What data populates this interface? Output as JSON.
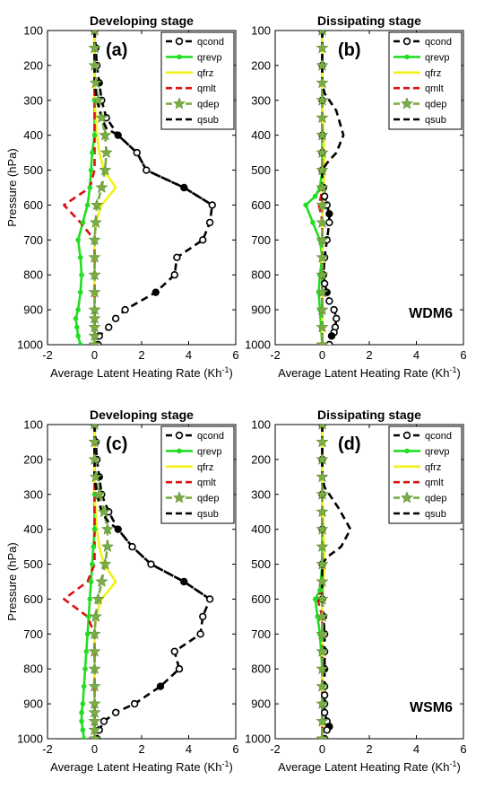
{
  "chart_data": [
    {
      "type": "line",
      "title": "Developing stage",
      "panel_label": "(a)",
      "scheme": "",
      "xlabel": "Average Latent Heating Rate (Kh",
      "xlabel_sup": "-1",
      "xlabel_close": ")",
      "ylabel": "Pressure (hPa)",
      "xlim": [
        -2,
        6
      ],
      "ylim": [
        1000,
        100
      ],
      "xticks": [
        "-2",
        "0",
        "2",
        "4",
        "6"
      ],
      "yticks": [
        "100",
        "200",
        "300",
        "400",
        "500",
        "600",
        "700",
        "800",
        "900",
        "1000"
      ],
      "legend_position": "top-right",
      "series": [
        {
          "name": "qcond",
          "x": [
            0,
            0.05,
            0.1,
            0.2,
            0.3,
            0.5,
            1.0,
            1.8,
            2.2,
            3.8,
            5.0,
            4.9,
            4.6,
            3.5,
            3.4,
            2.6,
            1.3,
            0.9,
            0.6,
            0.2,
            0.15
          ],
          "y": [
            100,
            150,
            200,
            250,
            300,
            350,
            400,
            450,
            500,
            550,
            600,
            650,
            700,
            750,
            800,
            850,
            900,
            925,
            950,
            975,
            1000
          ]
        },
        {
          "name": "qrevp",
          "x": [
            0,
            0,
            0,
            0,
            -0.1,
            -0.15,
            -0.2,
            -0.3,
            -0.5,
            -0.7,
            -0.6,
            -0.55,
            -0.6,
            -0.7,
            -0.8,
            -0.75,
            -0.7,
            -0.6
          ],
          "y": [
            100,
            200,
            300,
            400,
            450,
            500,
            550,
            600,
            650,
            700,
            750,
            800,
            850,
            900,
            925,
            950,
            975,
            1000
          ]
        },
        {
          "name": "qfrz",
          "x": [
            0,
            0,
            0.1,
            0.2,
            0.4,
            0.9,
            0.3,
            0.05,
            0,
            0
          ],
          "y": [
            100,
            300,
            400,
            450,
            500,
            550,
            600,
            650,
            700,
            1000
          ]
        },
        {
          "name": "qmlt",
          "x": [
            0,
            0,
            -0.2,
            -1.3,
            -0.6,
            0,
            0
          ],
          "y": [
            100,
            500,
            550,
            600,
            650,
            700,
            1000
          ]
        },
        {
          "name": "qdep",
          "x": [
            0,
            0,
            0,
            0.05,
            0.15,
            0.3,
            0.45,
            0.5,
            0.45,
            0.3,
            0.1,
            0.05,
            0,
            0,
            0,
            0,
            0,
            0,
            0,
            0,
            0
          ],
          "y": [
            100,
            150,
            200,
            250,
            300,
            350,
            400,
            450,
            500,
            550,
            600,
            650,
            700,
            750,
            800,
            850,
            900,
            925,
            950,
            975,
            1000
          ]
        },
        {
          "name": "qsub",
          "x": [
            0,
            0,
            0,
            0.1,
            0.3,
            0.5,
            1.0,
            1.8,
            2.2,
            3.8,
            5.0
          ],
          "y": [
            100,
            200,
            250,
            300,
            350,
            380,
            400,
            450,
            500,
            550,
            600
          ]
        }
      ]
    },
    {
      "type": "line",
      "title": "Dissipating stage",
      "panel_label": "(b)",
      "scheme": "WDM6",
      "xlabel": "Average Latent Heating Rate (Kh",
      "xlabel_sup": "-1",
      "xlabel_close": ")",
      "ylabel": "",
      "xlim": [
        -2,
        6
      ],
      "ylim": [
        1000,
        100
      ],
      "xticks": [
        "-2",
        "0",
        "2",
        "4",
        "6"
      ],
      "yticks": [
        "100",
        "200",
        "300",
        "400",
        "500",
        "600",
        "700",
        "800",
        "900",
        "1000"
      ],
      "legend_position": "top-right",
      "series": [
        {
          "name": "qcond",
          "x": [
            0,
            0,
            0,
            0,
            0,
            0,
            0.05,
            0.1,
            0.2,
            0.3,
            0.3,
            0.2,
            0.1,
            0.05,
            0.1,
            0.2,
            0.3,
            0.5,
            0.6,
            0.55,
            0.5,
            0.4,
            0.3
          ],
          "y": [
            100,
            200,
            300,
            400,
            450,
            500,
            550,
            575,
            600,
            625,
            650,
            700,
            750,
            800,
            825,
            850,
            875,
            900,
            925,
            950,
            965,
            975,
            1000
          ]
        },
        {
          "name": "qrevp",
          "x": [
            0,
            0,
            0,
            0,
            -0.1,
            -0.3,
            -0.7,
            -0.4,
            -0.1,
            0,
            -0.1,
            -0.15,
            -0.1,
            -0.05,
            0
          ],
          "y": [
            100,
            300,
            400,
            500,
            550,
            575,
            600,
            650,
            700,
            750,
            800,
            850,
            900,
            950,
            1000
          ]
        },
        {
          "name": "qfrz",
          "x": [
            0,
            0,
            0.05,
            0.1,
            0.05,
            0,
            0
          ],
          "y": [
            100,
            300,
            400,
            500,
            550,
            600,
            1000
          ]
        },
        {
          "name": "qmlt",
          "x": [
            0,
            0,
            -0.05,
            -0.15,
            -0.05,
            0,
            0
          ],
          "y": [
            100,
            550,
            575,
            600,
            625,
            650,
            1000
          ]
        },
        {
          "name": "qdep",
          "x": [
            0,
            0,
            0,
            0,
            0,
            0,
            0,
            0,
            0,
            0,
            0,
            0,
            0,
            0,
            0,
            0,
            0,
            0,
            0
          ],
          "y": [
            100,
            150,
            200,
            250,
            300,
            350,
            400,
            450,
            500,
            550,
            600,
            650,
            700,
            750,
            800,
            850,
            900,
            950,
            1000
          ]
        },
        {
          "name": "qsub",
          "x": [
            0,
            0,
            0.1,
            0.3,
            0.6,
            0.9,
            0.6,
            0.2,
            0,
            0
          ],
          "y": [
            100,
            250,
            280,
            300,
            330,
            400,
            450,
            480,
            500,
            600
          ]
        }
      ]
    },
    {
      "type": "line",
      "title": "Developing stage",
      "panel_label": "(c)",
      "scheme": "",
      "xlabel": "Average Latent Heating Rate (Kh",
      "xlabel_sup": "-1",
      "xlabel_close": ")",
      "ylabel": "Pressure (hPa)",
      "xlim": [
        -2,
        6
      ],
      "ylim": [
        1000,
        100
      ],
      "xticks": [
        "-2",
        "0",
        "2",
        "4",
        "6"
      ],
      "yticks": [
        "100",
        "200",
        "300",
        "400",
        "500",
        "600",
        "700",
        "800",
        "900",
        "1000"
      ],
      "legend_position": "top-right",
      "series": [
        {
          "name": "qcond",
          "x": [
            0,
            0.05,
            0.1,
            0.2,
            0.3,
            0.6,
            1.0,
            1.6,
            2.4,
            3.8,
            4.9,
            4.6,
            4.5,
            3.4,
            3.6,
            2.8,
            1.7,
            0.9,
            0.4,
            0.2,
            0.1
          ],
          "y": [
            100,
            150,
            200,
            250,
            300,
            350,
            400,
            450,
            500,
            550,
            600,
            650,
            700,
            750,
            800,
            850,
            900,
            925,
            950,
            975,
            1000
          ]
        },
        {
          "name": "qrevp",
          "x": [
            0,
            0,
            0,
            0,
            -0.05,
            -0.1,
            -0.15,
            -0.2,
            -0.25,
            -0.3,
            -0.35,
            -0.4,
            -0.45,
            -0.5,
            -0.55,
            -0.55,
            -0.5,
            -0.45
          ],
          "y": [
            100,
            200,
            300,
            400,
            450,
            500,
            550,
            600,
            650,
            700,
            750,
            800,
            850,
            900,
            925,
            950,
            975,
            1000
          ]
        },
        {
          "name": "qfrz",
          "x": [
            0,
            0,
            0.1,
            0.2,
            0.4,
            0.9,
            0.3,
            0.05,
            0,
            0
          ],
          "y": [
            100,
            300,
            400,
            450,
            500,
            550,
            600,
            650,
            700,
            1000
          ]
        },
        {
          "name": "qmlt",
          "x": [
            0,
            0,
            -0.3,
            -1.3,
            -0.3,
            0,
            0
          ],
          "y": [
            100,
            500,
            550,
            600,
            650,
            700,
            1000
          ]
        },
        {
          "name": "qdep",
          "x": [
            0,
            0,
            0,
            0.05,
            0.2,
            0.4,
            0.55,
            0.55,
            0.45,
            0.3,
            0.15,
            0.05,
            0,
            0,
            0,
            0,
            0,
            0,
            0,
            0,
            0
          ],
          "y": [
            100,
            150,
            200,
            250,
            300,
            350,
            400,
            450,
            500,
            550,
            600,
            650,
            700,
            750,
            800,
            850,
            900,
            925,
            950,
            975,
            1000
          ]
        },
        {
          "name": "qsub",
          "x": [
            0,
            0,
            0,
            0.1,
            0.3,
            0.6,
            1.0,
            1.6,
            2.4,
            3.8,
            4.9
          ],
          "y": [
            100,
            200,
            250,
            300,
            350,
            380,
            400,
            450,
            500,
            550,
            600
          ]
        }
      ]
    },
    {
      "type": "line",
      "title": "Dissipating stage",
      "panel_label": "(d)",
      "scheme": "WSM6",
      "xlabel": "Average Latent Heating Rate (Kh",
      "xlabel_sup": "-1",
      "xlabel_close": ")",
      "ylabel": "",
      "xlim": [
        -2,
        6
      ],
      "ylim": [
        1000,
        100
      ],
      "xticks": [
        "-2",
        "0",
        "2",
        "4",
        "6"
      ],
      "yticks": [
        "100",
        "200",
        "300",
        "400",
        "500",
        "600",
        "700",
        "800",
        "900",
        "1000"
      ],
      "legend_position": "top-right",
      "series": [
        {
          "name": "qcond",
          "x": [
            0,
            0,
            0,
            0,
            0,
            0,
            0.05,
            0.1,
            0.1,
            0.1,
            0.1,
            0.1,
            0.1,
            0.1,
            0.2,
            0.3,
            0.2,
            0.1
          ],
          "y": [
            100,
            200,
            300,
            400,
            500,
            600,
            650,
            700,
            750,
            800,
            850,
            875,
            900,
            925,
            950,
            965,
            975,
            1000
          ]
        },
        {
          "name": "qrevp",
          "x": [
            0,
            0,
            0,
            0,
            -0.1,
            -0.3,
            -0.2,
            -0.1,
            -0.05,
            0,
            0,
            0
          ],
          "y": [
            100,
            300,
            400,
            500,
            575,
            600,
            650,
            700,
            750,
            800,
            900,
            1000
          ]
        },
        {
          "name": "qfrz",
          "x": [
            0,
            0,
            0.05,
            0.1,
            0.05,
            0,
            0
          ],
          "y": [
            100,
            300,
            400,
            500,
            550,
            600,
            1000
          ]
        },
        {
          "name": "qmlt",
          "x": [
            0,
            0,
            -0.05,
            -0.2,
            -0.1,
            0,
            0
          ],
          "y": [
            100,
            550,
            575,
            600,
            625,
            650,
            1000
          ]
        },
        {
          "name": "qdep",
          "x": [
            0,
            0,
            0,
            0,
            0,
            0,
            0,
            0,
            0,
            0,
            0,
            0,
            0,
            0,
            0,
            0,
            0,
            0,
            0
          ],
          "y": [
            100,
            150,
            200,
            250,
            300,
            350,
            400,
            450,
            500,
            550,
            600,
            650,
            700,
            750,
            800,
            850,
            900,
            950,
            1000
          ]
        },
        {
          "name": "qsub",
          "x": [
            0,
            0,
            0.1,
            0.3,
            0.7,
            1.2,
            0.8,
            0.2,
            0,
            0
          ],
          "y": [
            100,
            250,
            280,
            300,
            340,
            400,
            450,
            480,
            500,
            600
          ]
        }
      ]
    }
  ],
  "series_styles": {
    "qcond": {
      "color": "#000000",
      "dash": "8,5",
      "marker": "circle-open"
    },
    "qrevp": {
      "color": "#22dd22",
      "dash": "",
      "marker": "dot"
    },
    "qfrz": {
      "color": "#f2f21a",
      "dash": "",
      "marker": "none"
    },
    "qmlt": {
      "color": "#dd1111",
      "dash": "8,5",
      "marker": "none"
    },
    "qdep": {
      "color": "#7aae44",
      "dash": "8,5",
      "marker": "star"
    },
    "qsub": {
      "color": "#000000",
      "dash": "8,5",
      "marker": "none"
    }
  }
}
